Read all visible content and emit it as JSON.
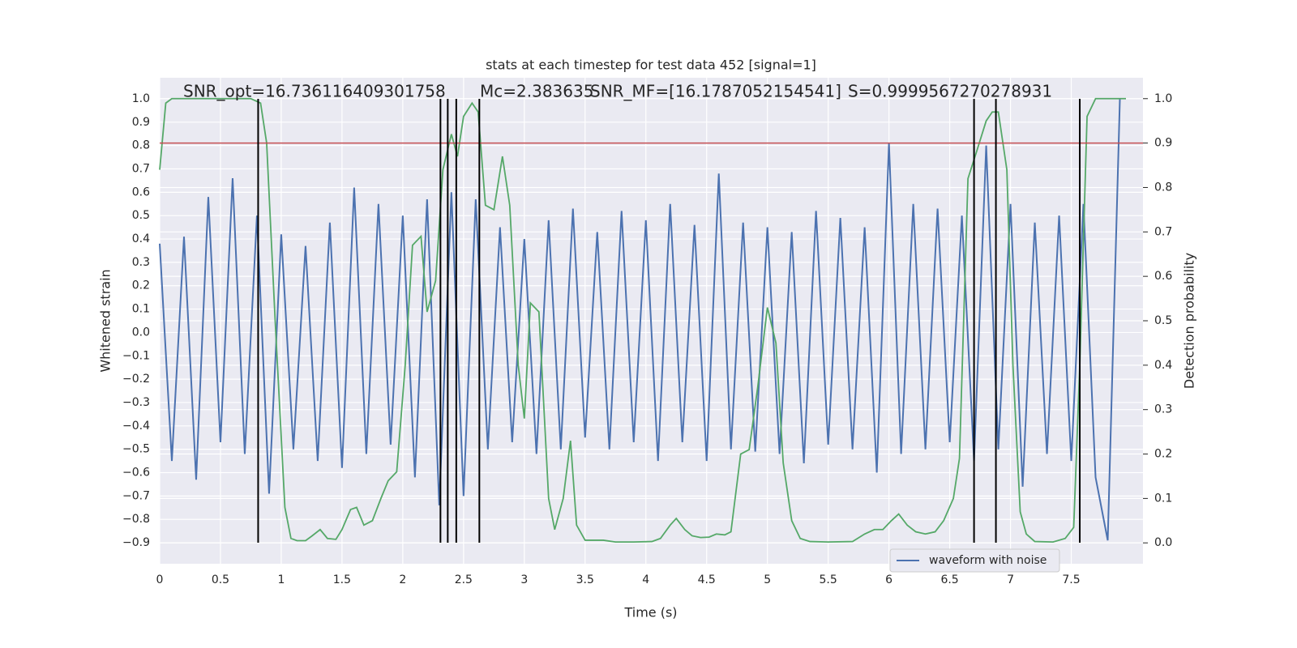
{
  "chart_data": {
    "type": "line",
    "title": "stats at each timestep for test data 452 [signal=1]",
    "xlabel": "Time (s)",
    "ylabel": "Whitened strain",
    "y2label": "Detection probability",
    "annotations": [
      "SNR_opt=16.736116409301758",
      "Mc=2.383635",
      "SNR_MF=[16.1787052154541]",
      "S=0.9999567270278931"
    ],
    "xlim": [
      0,
      8.09
    ],
    "ylim": [
      -0.99,
      1.09
    ],
    "y2lim": [
      -0.047,
      1.047
    ],
    "xticks": [
      0.0,
      0.5,
      1.0,
      1.5,
      2.0,
      2.5,
      3.0,
      3.5,
      4.0,
      4.5,
      5.0,
      5.5,
      6.0,
      6.5,
      7.0,
      7.5
    ],
    "yticks": [
      {
        "value": -0.9,
        "label": "−0.9"
      },
      {
        "value": -0.8,
        "label": "−0.8"
      },
      {
        "value": -0.7,
        "label": "−0.7"
      },
      {
        "value": -0.6,
        "label": "−0.6"
      },
      {
        "value": -0.5,
        "label": "−0.5"
      },
      {
        "value": -0.4,
        "label": "−0.4"
      },
      {
        "value": -0.3,
        "label": "−0.3"
      },
      {
        "value": -0.2,
        "label": "−0.2"
      },
      {
        "value": -0.1,
        "label": "−0.1"
      },
      {
        "value": 0,
        "label": "0.0"
      },
      0.1,
      0.2,
      0.3,
      0.4,
      0.5,
      0.6,
      0.7,
      0.8,
      0.9,
      {
        "value": 1,
        "label": "1.0"
      }
    ],
    "y2ticks": [
      {
        "value": 0,
        "label": "0.0"
      },
      0.1,
      0.2,
      0.3,
      0.4,
      0.5,
      0.6,
      0.7,
      0.8,
      0.9,
      {
        "value": 1,
        "label": "1.0"
      }
    ],
    "grid": true,
    "legend": "lower right",
    "series": [
      {
        "name": "waveform with noise",
        "color": "#4c72b0",
        "x": [
          0.0,
          0.1,
          0.2,
          0.3,
          0.4,
          0.5,
          0.6,
          0.7,
          0.8,
          0.9,
          1.0,
          1.1,
          1.2,
          1.3,
          1.4,
          1.5,
          1.6,
          1.7,
          1.8,
          1.9,
          2.0,
          2.1,
          2.2,
          2.3,
          2.4,
          2.5,
          2.6,
          2.7,
          2.8,
          2.9,
          3.0,
          3.1,
          3.2,
          3.3,
          3.4,
          3.5,
          3.6,
          3.7,
          3.8,
          3.9,
          4.0,
          4.1,
          4.2,
          4.3,
          4.4,
          4.5,
          4.6,
          4.7,
          4.8,
          4.9,
          5.0,
          5.1,
          5.2,
          5.3,
          5.4,
          5.5,
          5.6,
          5.7,
          5.8,
          5.9,
          6.0,
          6.1,
          6.2,
          6.3,
          6.4,
          6.5,
          6.6,
          6.7,
          6.8,
          6.9,
          7.0,
          7.1,
          7.2,
          7.3,
          7.4,
          7.5,
          7.6,
          7.7,
          7.8,
          7.9
        ],
        "values": [
          0.38,
          -0.55,
          0.41,
          -0.63,
          0.58,
          -0.47,
          0.66,
          -0.52,
          0.5,
          -0.69,
          0.42,
          -0.5,
          0.37,
          -0.55,
          0.47,
          -0.58,
          0.62,
          -0.52,
          0.55,
          -0.48,
          0.5,
          -0.62,
          0.57,
          -0.74,
          0.6,
          -0.7,
          0.57,
          -0.5,
          0.45,
          -0.47,
          0.4,
          -0.52,
          0.48,
          -0.5,
          0.53,
          -0.45,
          0.43,
          -0.5,
          0.52,
          -0.47,
          0.48,
          -0.55,
          0.55,
          -0.47,
          0.46,
          -0.55,
          0.68,
          -0.5,
          0.47,
          -0.51,
          0.45,
          -0.52,
          0.43,
          -0.56,
          0.52,
          -0.48,
          0.49,
          -0.5,
          0.45,
          -0.6,
          0.81,
          -0.52,
          0.55,
          -0.5,
          0.53,
          -0.47,
          0.5,
          -0.55,
          0.8,
          -0.5,
          0.55,
          -0.66,
          0.47,
          -0.52,
          0.5,
          -0.55,
          0.55,
          -0.62,
          -0.89,
          1.0
        ]
      },
      {
        "color": "#55a868",
        "axis": "y2",
        "x": [
          0.0,
          0.05,
          0.1,
          0.2,
          0.75,
          0.83,
          0.88,
          0.95,
          1.03,
          1.08,
          1.13,
          1.2,
          1.25,
          1.32,
          1.38,
          1.45,
          1.5,
          1.57,
          1.62,
          1.68,
          1.75,
          1.82,
          1.88,
          1.95,
          2.02,
          2.08,
          2.15,
          2.2,
          2.27,
          2.33,
          2.4,
          2.45,
          2.5,
          2.57,
          2.62,
          2.68,
          2.75,
          2.82,
          2.88,
          2.95,
          3.0,
          3.05,
          3.12,
          3.2,
          3.25,
          3.32,
          3.38,
          3.43,
          3.5,
          3.6,
          3.65,
          3.75,
          3.9,
          4.05,
          4.12,
          4.2,
          4.25,
          4.32,
          4.38,
          4.45,
          4.52,
          4.58,
          4.65,
          4.7,
          4.78,
          4.85,
          4.92,
          5.0,
          5.07,
          5.13,
          5.2,
          5.27,
          5.35,
          5.5,
          5.7,
          5.8,
          5.88,
          5.95,
          6.02,
          6.08,
          6.15,
          6.22,
          6.3,
          6.38,
          6.45,
          6.53,
          6.58,
          6.65,
          6.72,
          6.8,
          6.85,
          6.9,
          6.97,
          7.02,
          7.08,
          7.13,
          7.2,
          7.35,
          7.45,
          7.52,
          7.57,
          7.63,
          7.7,
          7.8,
          7.95
        ],
        "values": [
          0.84,
          0.99,
          1.0,
          1.0,
          1.0,
          0.99,
          0.9,
          0.5,
          0.08,
          0.01,
          0.005,
          0.005,
          0.015,
          0.03,
          0.01,
          0.008,
          0.03,
          0.075,
          0.08,
          0.04,
          0.05,
          0.1,
          0.14,
          0.16,
          0.4,
          0.67,
          0.69,
          0.52,
          0.59,
          0.84,
          0.92,
          0.87,
          0.96,
          0.99,
          0.97,
          0.76,
          0.75,
          0.87,
          0.76,
          0.4,
          0.28,
          0.54,
          0.52,
          0.1,
          0.03,
          0.1,
          0.23,
          0.04,
          0.006,
          0.006,
          0.006,
          0.002,
          0.002,
          0.003,
          0.01,
          0.04,
          0.055,
          0.03,
          0.016,
          0.012,
          0.013,
          0.02,
          0.018,
          0.025,
          0.2,
          0.21,
          0.35,
          0.53,
          0.45,
          0.18,
          0.05,
          0.01,
          0.003,
          0.002,
          0.003,
          0.02,
          0.03,
          0.03,
          0.05,
          0.065,
          0.04,
          0.025,
          0.02,
          0.025,
          0.05,
          0.1,
          0.19,
          0.82,
          0.88,
          0.95,
          0.97,
          0.97,
          0.84,
          0.4,
          0.07,
          0.02,
          0.003,
          0.002,
          0.01,
          0.035,
          0.4,
          0.96,
          1.0,
          1.0,
          1.0
        ]
      }
    ],
    "threshold": {
      "value": 0.9,
      "color": "#c44e52"
    },
    "vlines": {
      "x": [
        0.81,
        2.31,
        2.37,
        2.44,
        2.63,
        6.7,
        6.88,
        7.57
      ],
      "range": [
        -0.9,
        1.0
      ],
      "color": "#000000"
    }
  }
}
